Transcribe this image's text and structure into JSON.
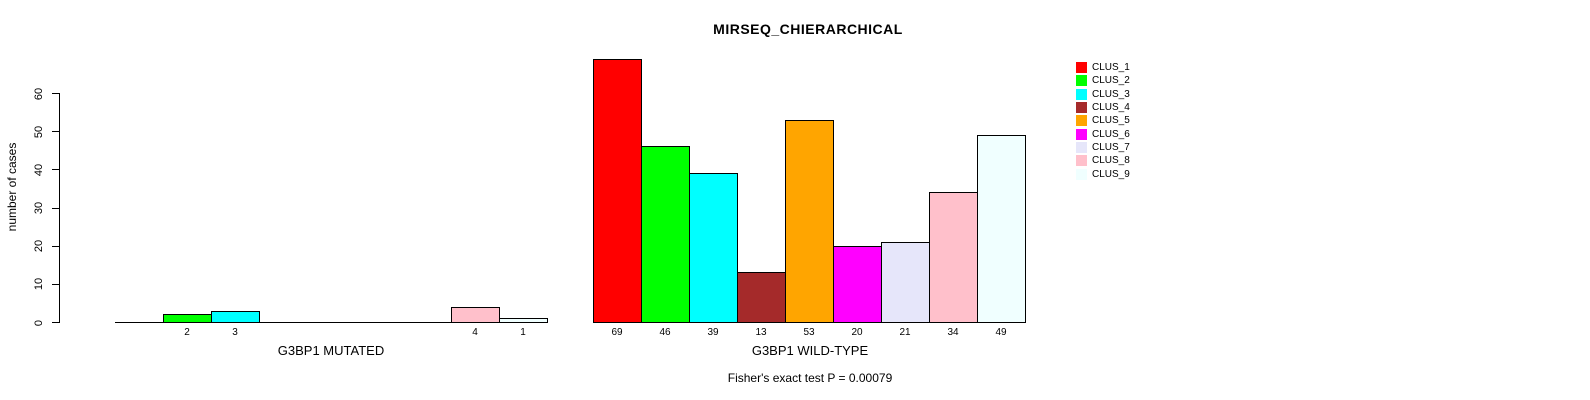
{
  "chart_data": {
    "type": "bar",
    "title": "MIRSEQ_CHIERARCHICAL",
    "ylabel": "number of cases",
    "ylim": [
      0,
      60
    ],
    "yticks": [
      0,
      10,
      20,
      30,
      40,
      50,
      60
    ],
    "grid": false,
    "legend_position": "right-top",
    "categories": [
      "CLUS_1",
      "CLUS_2",
      "CLUS_3",
      "CLUS_4",
      "CLUS_5",
      "CLUS_6",
      "CLUS_7",
      "CLUS_8",
      "CLUS_9"
    ],
    "colors": [
      "#ff0000",
      "#00ff00",
      "#00ffff",
      "#a52a2a",
      "#ffa500",
      "#ff00ff",
      "#e6e6fa",
      "#ffc0cb",
      "#f0ffff"
    ],
    "series": [
      {
        "name": "G3BP1 MUTATED",
        "values": [
          0,
          2,
          3,
          0,
          0,
          0,
          0,
          4,
          1
        ]
      },
      {
        "name": "G3BP1 WILD-TYPE",
        "values": [
          69,
          46,
          39,
          13,
          53,
          20,
          21,
          34,
          49
        ]
      }
    ],
    "bar_labels": {
      "G3BP1 MUTATED": [
        "2",
        "3",
        "4",
        "1"
      ],
      "G3BP1 WILD-TYPE": [
        "69",
        "46",
        "39",
        "13",
        "53",
        "20",
        "21",
        "34",
        "49"
      ]
    },
    "annotation": "Fisher's exact test P = 0.00079"
  }
}
